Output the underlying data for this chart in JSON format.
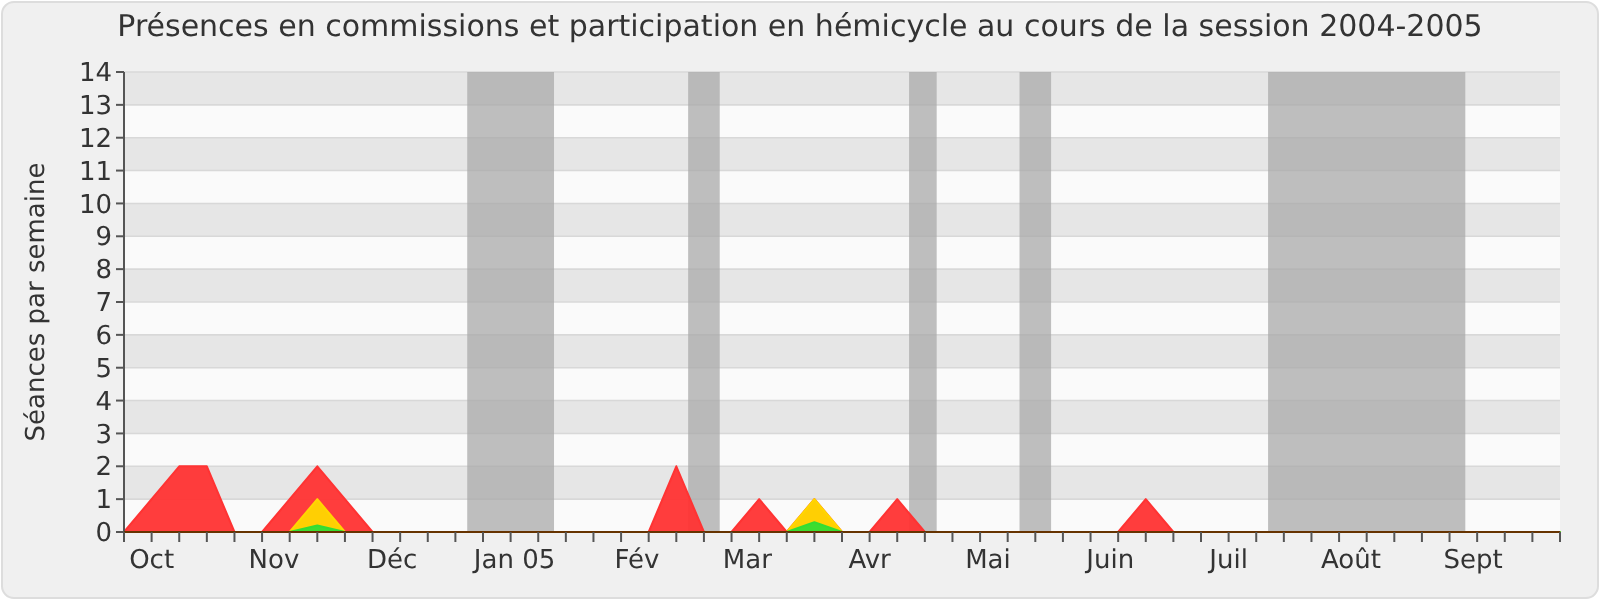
{
  "chart_data": {
    "type": "area",
    "title": "Présences en commissions et participation en hémicycle au cours de la session 2004-2005",
    "ylabel": "Séances par semaine",
    "x": [
      "2004-10-01",
      "2004-10-08",
      "2004-10-15",
      "2004-10-22",
      "2004-10-29",
      "2004-11-05",
      "2004-11-12",
      "2004-11-19",
      "2004-11-26",
      "2004-12-03",
      "2004-12-10",
      "2004-12-17",
      "2004-12-24",
      "2004-12-31",
      "2005-01-07",
      "2005-01-14",
      "2005-01-21",
      "2005-01-28",
      "2005-02-04",
      "2005-02-11",
      "2005-02-18",
      "2005-02-25",
      "2005-03-04",
      "2005-03-11",
      "2005-03-18",
      "2005-03-25",
      "2005-04-01",
      "2005-04-08",
      "2005-04-15",
      "2005-04-22",
      "2005-04-29",
      "2005-05-06",
      "2005-05-13",
      "2005-05-20",
      "2005-05-27",
      "2005-06-03",
      "2005-06-10",
      "2005-06-17",
      "2005-06-24",
      "2005-07-01",
      "2005-07-08",
      "2005-07-15",
      "2005-07-22",
      "2005-07-29",
      "2005-08-05",
      "2005-08-12",
      "2005-08-19",
      "2005-08-26",
      "2005-09-02",
      "2005-09-09",
      "2005-09-16",
      "2005-09-23",
      "2005-09-30"
    ],
    "series": [
      {
        "color": "#ff3333",
        "values": [
          0,
          1,
          2,
          2,
          0,
          0,
          1,
          2,
          1,
          0,
          0,
          0,
          0,
          0,
          0,
          0,
          0,
          0,
          0,
          0,
          2,
          0,
          0,
          1,
          0,
          1,
          0,
          0,
          1,
          0,
          0,
          0,
          0,
          0,
          0,
          0,
          0,
          1,
          0,
          0,
          0,
          0,
          0,
          0,
          0,
          0,
          0,
          0,
          0,
          0,
          0,
          0,
          0
        ]
      },
      {
        "color": "#ffd700",
        "values": [
          0,
          0,
          0,
          0,
          0,
          0,
          0,
          1,
          0,
          0,
          0,
          0,
          0,
          0,
          0,
          0,
          0,
          0,
          0,
          0,
          0,
          0,
          0,
          0,
          0,
          1,
          0,
          0,
          0,
          0,
          0,
          0,
          0,
          0,
          0,
          0,
          0,
          0,
          0,
          0,
          0,
          0,
          0,
          0,
          0,
          0,
          0,
          0,
          0,
          0,
          0,
          0,
          0
        ]
      },
      {
        "color": "#33dd33",
        "values": [
          0,
          0,
          0,
          0,
          0,
          0,
          0,
          0.2,
          0,
          0,
          0,
          0,
          0,
          0,
          0,
          0,
          0,
          0,
          0,
          0,
          0,
          0,
          0,
          0,
          0,
          0.3,
          0,
          0,
          0,
          0,
          0,
          0,
          0,
          0,
          0,
          0,
          0,
          0,
          0,
          0,
          0,
          0,
          0,
          0,
          0,
          0,
          0,
          0,
          0,
          0,
          0,
          0,
          0
        ]
      }
    ],
    "xlim": [
      "2004-10-01",
      "2005-09-30"
    ],
    "xticks": [
      {
        "value": "2004-10-08",
        "label": "Oct"
      },
      {
        "value": "2004-11-08",
        "label": "Nov"
      },
      {
        "value": "2004-12-08",
        "label": "Déc"
      },
      {
        "value": "2005-01-08",
        "label": "Jan 05"
      },
      {
        "value": "2005-02-08",
        "label": "Fév"
      },
      {
        "value": "2005-03-08",
        "label": "Mar"
      },
      {
        "value": "2005-04-08",
        "label": "Avr"
      },
      {
        "value": "2005-05-08",
        "label": "Mai"
      },
      {
        "value": "2005-06-08",
        "label": "Juin"
      },
      {
        "value": "2005-07-08",
        "label": "Juil"
      },
      {
        "value": "2005-08-08",
        "label": "Août"
      },
      {
        "value": "2005-09-08",
        "label": "Sept"
      }
    ],
    "ylim": [
      0,
      14
    ],
    "yticks": [
      0,
      1,
      2,
      3,
      4,
      5,
      6,
      7,
      8,
      9,
      10,
      11,
      12,
      13,
      14
    ],
    "grid": "y",
    "bands": [
      {
        "axis": "x",
        "from": "2004-12-27",
        "to": "2005-01-18",
        "color": "#aaaaaa"
      },
      {
        "axis": "x",
        "from": "2005-02-21",
        "to": "2005-03-01",
        "color": "#aaaaaa"
      },
      {
        "axis": "x",
        "from": "2005-04-18",
        "to": "2005-04-25",
        "color": "#aaaaaa"
      },
      {
        "axis": "x",
        "from": "2005-05-16",
        "to": "2005-05-24",
        "color": "#aaaaaa"
      },
      {
        "axis": "x",
        "from": "2005-07-18",
        "to": "2005-09-06",
        "color": "#aaaaaa"
      }
    ]
  }
}
